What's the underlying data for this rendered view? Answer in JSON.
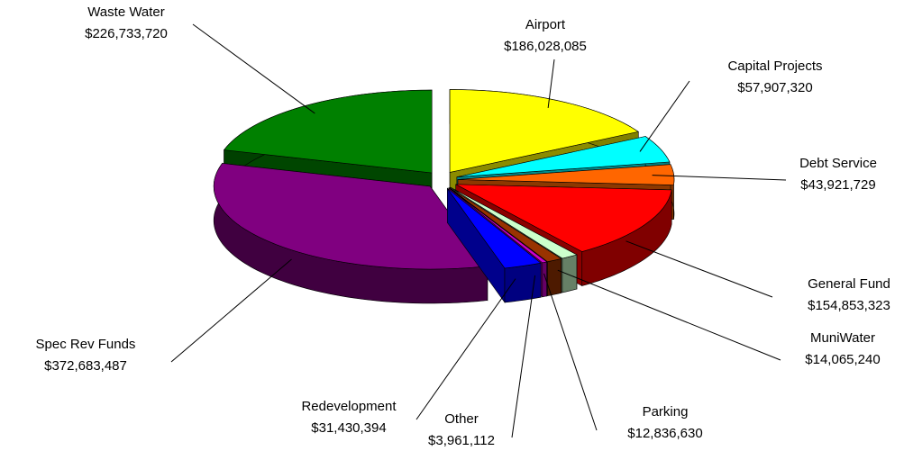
{
  "chart_data": {
    "type": "pie3d",
    "categories": [
      "Airport",
      "Capital Projects",
      "Debt Service",
      "General Fund",
      "MuniWater",
      "Parking",
      "Other",
      "Redevelopment",
      "Spec Rev Funds",
      "Waste Water"
    ],
    "values": [
      186028085,
      57907320,
      43921729,
      154853323,
      14065240,
      12836630,
      3961112,
      31430394,
      372683487,
      226733720
    ],
    "value_labels": [
      "$186,028,085",
      "$57,907,320",
      "$43,921,729",
      "$154,853,323",
      "$14,065,240",
      "$12,836,630",
      "$3,961,112",
      "$31,430,394",
      "$372,683,487",
      "$226,733,720"
    ],
    "colors": [
      "#ffff00",
      "#00ffff",
      "#ff6600",
      "#ff0000",
      "#ccffcc",
      "#993300",
      "#cc00cc",
      "#0000ff",
      "#800080",
      "#008000"
    ]
  }
}
